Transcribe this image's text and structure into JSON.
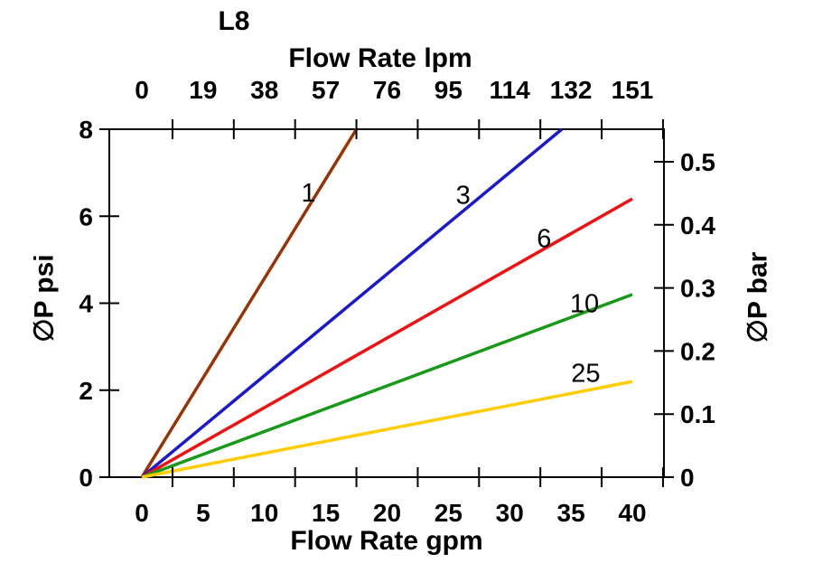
{
  "title": "L8",
  "chart_data": {
    "type": "line",
    "title": "L8",
    "x_axis_top": {
      "label": "Flow Rate lpm",
      "ticks": [
        0,
        19,
        38,
        57,
        76,
        95,
        114,
        132,
        151
      ],
      "range": [
        0,
        151
      ],
      "unit": "lpm"
    },
    "x_axis_bottom": {
      "label": "Flow Rate gpm",
      "ticks": [
        0,
        5,
        10,
        15,
        20,
        25,
        30,
        35,
        40
      ],
      "range": [
        0,
        40
      ],
      "unit": "gpm"
    },
    "y_axis_left": {
      "label": "∅P psi",
      "ticks": [
        0,
        2,
        4,
        6,
        8
      ],
      "range": [
        0,
        8
      ],
      "unit": "psi"
    },
    "y_axis_right": {
      "label": "∅P bar",
      "ticks": [
        0,
        0.1,
        0.2,
        0.3,
        0.4,
        0.5
      ],
      "range": [
        0,
        0.55
      ],
      "unit": "bar"
    },
    "grid": false,
    "legend": "inline-curve-labels",
    "series": [
      {
        "name": "1",
        "color": "#993305",
        "points_gpm_psi": [
          [
            0,
            0
          ],
          [
            17.5,
            8
          ]
        ],
        "label_at_gpm_psi": [
          13.6,
          6.55
        ]
      },
      {
        "name": "3",
        "color": "#1a1acc",
        "points_gpm_psi": [
          [
            0,
            0
          ],
          [
            34.25,
            8
          ]
        ],
        "label_at_gpm_psi": [
          26.2,
          6.5
        ]
      },
      {
        "name": "6",
        "color": "#ee1111",
        "points_gpm_psi": [
          [
            0,
            0
          ],
          [
            40,
            6.4
          ]
        ],
        "label_at_gpm_psi": [
          32.8,
          5.5
        ]
      },
      {
        "name": "10",
        "color": "#189918",
        "points_gpm_psi": [
          [
            0,
            0
          ],
          [
            40,
            4.2
          ]
        ],
        "label_at_gpm_psi": [
          36.1,
          4.0
        ]
      },
      {
        "name": "25",
        "color": "#ffcc00",
        "points_gpm_psi": [
          [
            0,
            0
          ],
          [
            40,
            2.2
          ]
        ],
        "label_at_gpm_psi": [
          36.2,
          2.4
        ]
      }
    ]
  }
}
